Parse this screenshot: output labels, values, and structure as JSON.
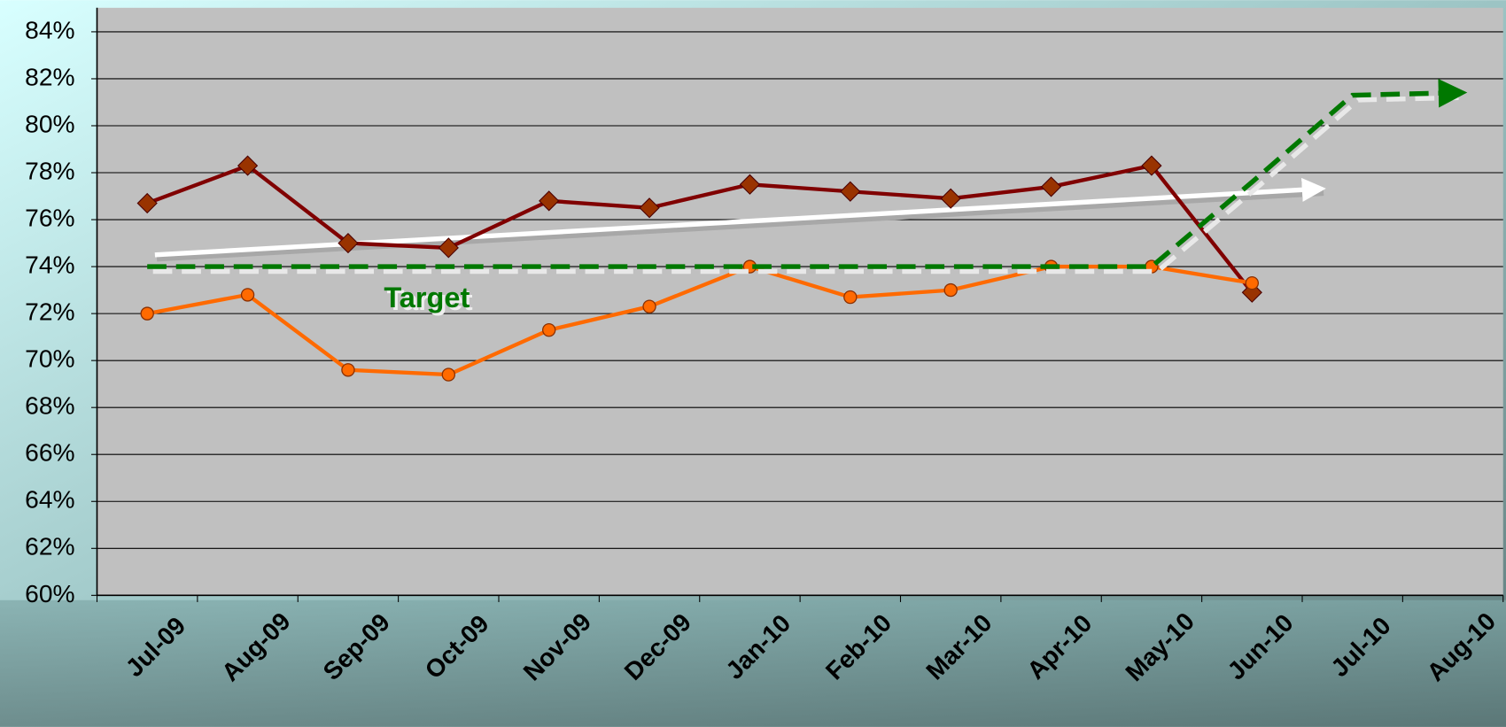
{
  "chart_data": {
    "type": "line",
    "categories": [
      "Jul-09",
      "Aug-09",
      "Sep-09",
      "Oct-09",
      "Nov-09",
      "Dec-09",
      "Jan-10",
      "Feb-10",
      "Mar-10",
      "Apr-10",
      "May-10",
      "Jun-10",
      "Jul-10",
      "Aug-10"
    ],
    "series": [
      {
        "color": "#800000",
        "marker": "diamond",
        "values": [
          76.7,
          78.3,
          75.0,
          74.8,
          76.8,
          76.5,
          77.5,
          77.2,
          76.9,
          77.4,
          78.3,
          72.9,
          null,
          null
        ]
      },
      {
        "color": "#ff6a00",
        "marker": "circle",
        "values": [
          72.0,
          72.8,
          69.6,
          69.4,
          71.3,
          72.3,
          74.0,
          72.7,
          73.0,
          74.0,
          74.0,
          73.3,
          null,
          null
        ]
      },
      {
        "color": "#007800",
        "marker": "none",
        "dashed": true,
        "arrow": true,
        "values": [
          74,
          74,
          74,
          74,
          74,
          74,
          74,
          74,
          74,
          74,
          74,
          77.6,
          81.3,
          81.4
        ]
      }
    ],
    "trend": {
      "color": "#ffffff",
      "start": 74.5,
      "end": 77.3
    },
    "annotations": [
      {
        "text": "Target",
        "color": "#007800",
        "x": "Sep-09",
        "y": 72.6
      }
    ],
    "ylim": [
      60,
      84
    ],
    "yticks": [
      {
        "value": 60,
        "label": "60%"
      },
      {
        "value": 62,
        "label": "62%"
      },
      {
        "value": 64,
        "label": "64%"
      },
      {
        "value": 66,
        "label": "66%"
      },
      {
        "value": 68,
        "label": "68%"
      },
      {
        "value": 70,
        "label": "70%"
      },
      {
        "value": 72,
        "label": "72%"
      },
      {
        "value": 74,
        "label": "74%"
      },
      {
        "value": 76,
        "label": "76%"
      },
      {
        "value": 78,
        "label": "78%"
      },
      {
        "value": 80,
        "label": "80%"
      },
      {
        "value": 82,
        "label": "82%"
      },
      {
        "value": 84,
        "label": "84%"
      }
    ],
    "grid": true
  }
}
